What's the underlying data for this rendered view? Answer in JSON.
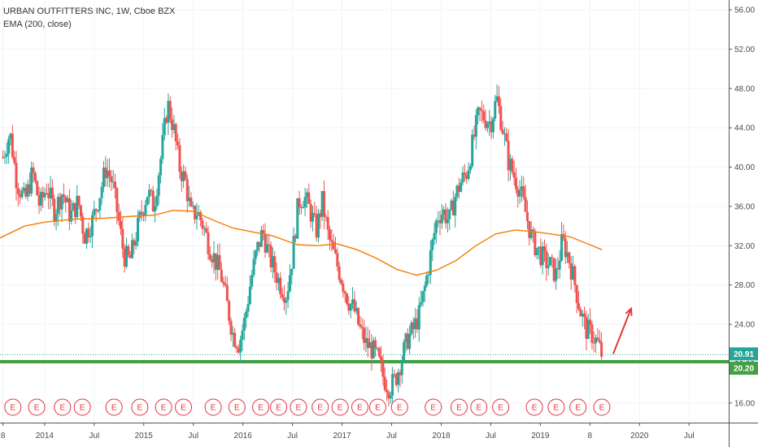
{
  "header": {
    "symbol_line": "URBAN OUTFITTERS INC, 1W, Cboe BZX",
    "indicator_line": "EMA (200, close)"
  },
  "chart_data": {
    "type": "candlestick",
    "title": "URBAN OUTFITTERS INC, 1W, Cboe BZX",
    "indicator": "EMA (200, close)",
    "ylim": [
      14,
      57
    ],
    "y_ticks": [
      "16.00",
      "20.00",
      "24.00",
      "28.00",
      "32.00",
      "36.00",
      "40.00",
      "44.00",
      "48.00",
      "52.00",
      "56.00"
    ],
    "x_ticks": [
      "8",
      "2014",
      "Jul",
      "2015",
      "Jul",
      "2016",
      "Jul",
      "2017",
      "Jul",
      "2018",
      "Jul",
      "2019",
      "8",
      "2020",
      "Jul"
    ],
    "x_tick_years": [
      2013.58,
      2014.0,
      2014.5,
      2015.0,
      2015.5,
      2016.0,
      2016.5,
      2017.0,
      2017.5,
      2018.0,
      2018.5,
      2019.0,
      2019.5,
      2020.0,
      2020.5
    ],
    "xlim": [
      2013.55,
      2020.9
    ],
    "last_bar_year": 2019.62,
    "price_labels": [
      {
        "value": 20.91,
        "text": "20.91",
        "color": "#26a69a"
      },
      {
        "value": 20.2,
        "text": "20.20",
        "color": "#43a047"
      }
    ],
    "support_level": 20.2,
    "support_color": "#43a047",
    "up_color": "#26a69a",
    "down_color": "#ef5350",
    "ema_color": "#f57c00",
    "arrow_color": "#e53935",
    "price_path": [
      [
        2013.58,
        41.0
      ],
      [
        2013.65,
        43.5
      ],
      [
        2013.72,
        38.5
      ],
      [
        2013.8,
        36.5
      ],
      [
        2013.88,
        39.5
      ],
      [
        2013.95,
        36.0
      ],
      [
        2014.02,
        38.0
      ],
      [
        2014.1,
        35.5
      ],
      [
        2014.18,
        37.5
      ],
      [
        2014.26,
        35.0
      ],
      [
        2014.34,
        36.5
      ],
      [
        2014.4,
        33.0
      ],
      [
        2014.48,
        34.5
      ],
      [
        2014.55,
        37.0
      ],
      [
        2014.62,
        40.0
      ],
      [
        2014.68,
        38.5
      ],
      [
        2014.74,
        35.0
      ],
      [
        2014.8,
        31.0
      ],
      [
        2014.86,
        30.5
      ],
      [
        2014.92,
        33.0
      ],
      [
        2014.98,
        35.5
      ],
      [
        2015.04,
        37.5
      ],
      [
        2015.1,
        36.0
      ],
      [
        2015.18,
        41.5
      ],
      [
        2015.24,
        46.5
      ],
      [
        2015.3,
        44.0
      ],
      [
        2015.36,
        40.0
      ],
      [
        2015.42,
        38.5
      ],
      [
        2015.48,
        35.0
      ],
      [
        2015.54,
        35.5
      ],
      [
        2015.6,
        34.0
      ],
      [
        2015.66,
        32.0
      ],
      [
        2015.72,
        30.5
      ],
      [
        2015.78,
        29.0
      ],
      [
        2015.84,
        26.0
      ],
      [
        2015.9,
        23.0
      ],
      [
        2015.96,
        22.0
      ],
      [
        2016.02,
        24.5
      ],
      [
        2016.08,
        28.5
      ],
      [
        2016.14,
        31.5
      ],
      [
        2016.2,
        33.5
      ],
      [
        2016.26,
        31.0
      ],
      [
        2016.32,
        29.5
      ],
      [
        2016.38,
        28.0
      ],
      [
        2016.44,
        27.0
      ],
      [
        2016.5,
        31.0
      ],
      [
        2016.56,
        36.5
      ],
      [
        2016.62,
        37.0
      ],
      [
        2016.68,
        35.5
      ],
      [
        2016.74,
        33.5
      ],
      [
        2016.8,
        36.5
      ],
      [
        2016.86,
        33.0
      ],
      [
        2016.92,
        31.0
      ],
      [
        2017.0,
        28.5
      ],
      [
        2017.06,
        26.5
      ],
      [
        2017.12,
        25.5
      ],
      [
        2017.18,
        23.5
      ],
      [
        2017.24,
        22.0
      ],
      [
        2017.3,
        21.5
      ],
      [
        2017.36,
        20.5
      ],
      [
        2017.42,
        18.5
      ],
      [
        2017.48,
        17.5
      ],
      [
        2017.54,
        18.5
      ],
      [
        2017.6,
        20.5
      ],
      [
        2017.66,
        22.5
      ],
      [
        2017.72,
        23.5
      ],
      [
        2017.78,
        25.0
      ],
      [
        2017.84,
        28.0
      ],
      [
        2017.9,
        31.5
      ],
      [
        2017.96,
        35.0
      ],
      [
        2018.02,
        35.5
      ],
      [
        2018.08,
        34.5
      ],
      [
        2018.14,
        37.0
      ],
      [
        2018.2,
        38.5
      ],
      [
        2018.26,
        39.5
      ],
      [
        2018.32,
        42.5
      ],
      [
        2018.38,
        45.5
      ],
      [
        2018.44,
        45.0
      ],
      [
        2018.5,
        44.5
      ],
      [
        2018.56,
        47.0
      ],
      [
        2018.62,
        44.0
      ],
      [
        2018.68,
        40.5
      ],
      [
        2018.74,
        39.0
      ],
      [
        2018.8,
        37.5
      ],
      [
        2018.86,
        35.0
      ],
      [
        2018.92,
        32.5
      ],
      [
        2018.98,
        31.5
      ],
      [
        2019.04,
        30.5
      ],
      [
        2019.1,
        30.0
      ],
      [
        2019.16,
        29.0
      ],
      [
        2019.22,
        32.5
      ],
      [
        2019.28,
        31.0
      ],
      [
        2019.34,
        28.5
      ],
      [
        2019.4,
        25.5
      ],
      [
        2019.46,
        23.5
      ],
      [
        2019.52,
        23.0
      ],
      [
        2019.58,
        22.0
      ],
      [
        2019.62,
        20.9
      ]
    ],
    "ema_points": [
      [
        2013.55,
        32.8
      ],
      [
        2013.8,
        34.0
      ],
      [
        2014.0,
        34.4
      ],
      [
        2014.3,
        34.7
      ],
      [
        2014.6,
        34.8
      ],
      [
        2014.9,
        35.0
      ],
      [
        2015.1,
        35.1
      ],
      [
        2015.3,
        35.6
      ],
      [
        2015.5,
        35.5
      ],
      [
        2015.7,
        34.6
      ],
      [
        2015.9,
        33.8
      ],
      [
        2016.1,
        33.4
      ],
      [
        2016.3,
        33.0
      ],
      [
        2016.55,
        32.1
      ],
      [
        2016.75,
        32.0
      ],
      [
        2016.95,
        32.2
      ],
      [
        2017.15,
        31.6
      ],
      [
        2017.35,
        30.7
      ],
      [
        2017.55,
        29.6
      ],
      [
        2017.75,
        29.0
      ],
      [
        2017.95,
        29.5
      ],
      [
        2018.15,
        30.5
      ],
      [
        2018.35,
        32.0
      ],
      [
        2018.55,
        33.2
      ],
      [
        2018.75,
        33.6
      ],
      [
        2018.95,
        33.4
      ],
      [
        2019.1,
        33.2
      ],
      [
        2019.3,
        32.9
      ],
      [
        2019.5,
        32.1
      ],
      [
        2019.62,
        31.6
      ]
    ],
    "earnings_years": [
      2013.68,
      2013.92,
      2014.18,
      2014.38,
      2014.7,
      2014.96,
      2015.2,
      2015.4,
      2015.7,
      2015.94,
      2016.18,
      2016.36,
      2016.56,
      2016.78,
      2016.98,
      2017.18,
      2017.36,
      2017.58,
      2017.92,
      2018.18,
      2018.38,
      2018.6,
      2018.94,
      2019.16,
      2019.38,
      2019.62
    ],
    "earnings_label": "E"
  }
}
